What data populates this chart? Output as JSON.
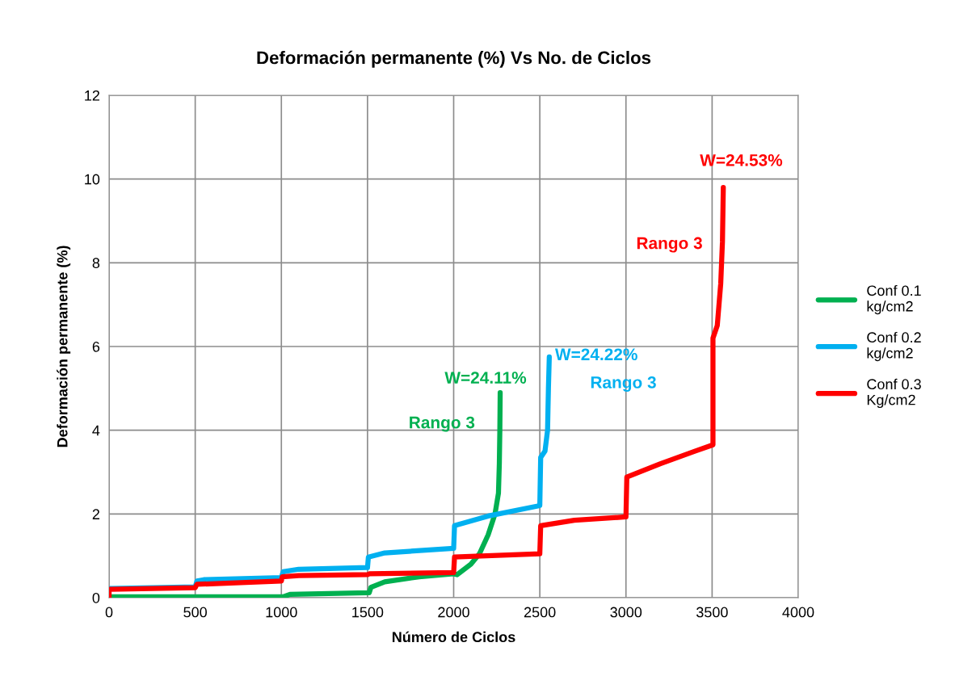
{
  "chart_data": {
    "type": "line",
    "title": "Deformación permanente (%) Vs No. de Ciclos",
    "xlabel": "Número de Ciclos",
    "ylabel": "Deformación permanente (%)",
    "xlim": [
      0,
      4000
    ],
    "xticks": [
      0,
      500,
      1000,
      1500,
      2000,
      2500,
      3000,
      3500,
      4000
    ],
    "ylim": [
      0,
      12
    ],
    "yticks": [
      0,
      2,
      4,
      6,
      8,
      10,
      12
    ],
    "grid": true,
    "legend": "right",
    "marker": "none",
    "line_style": "solid",
    "series": [
      {
        "name": "Conf 0.1\nkg/cm2",
        "color": "#00b050",
        "x": [
          0,
          1000,
          1010,
          1050,
          1500,
          1510,
          1520,
          1600,
          1800,
          2000,
          2020,
          2100,
          2150,
          2200,
          2240,
          2260,
          2265,
          2268,
          2270
        ],
        "values": [
          0.02,
          0.02,
          0.02,
          0.08,
          0.12,
          0.12,
          0.25,
          0.38,
          0.5,
          0.57,
          0.55,
          0.8,
          1.05,
          1.5,
          2.0,
          2.5,
          3.2,
          4.0,
          4.9
        ]
      },
      {
        "name": "Conf 0.2\nkg/cm2",
        "color": "#00b0f0",
        "x": [
          0,
          500,
          510,
          550,
          1000,
          1010,
          1100,
          1500,
          1505,
          1600,
          2000,
          2005,
          2200,
          2500,
          2505,
          2530,
          2545,
          2550,
          2555
        ],
        "values": [
          0.22,
          0.26,
          0.4,
          0.43,
          0.48,
          0.62,
          0.68,
          0.72,
          0.97,
          1.07,
          1.18,
          1.72,
          1.95,
          2.2,
          3.35,
          3.5,
          4.0,
          5.0,
          5.75
        ]
      },
      {
        "name": "Conf 0.3\nKg/cm2",
        "color": "#ff0000",
        "x": [
          0,
          0,
          500,
          510,
          1000,
          1005,
          1100,
          1500,
          1510,
          2000,
          2005,
          2500,
          2505,
          2700,
          3000,
          3005,
          3200,
          3400,
          3505,
          3505,
          3530,
          3550,
          3560,
          3565
        ],
        "values": [
          0.0,
          0.2,
          0.24,
          0.32,
          0.4,
          0.5,
          0.53,
          0.55,
          0.57,
          0.6,
          0.97,
          1.05,
          1.72,
          1.85,
          1.93,
          2.88,
          3.2,
          3.5,
          3.65,
          6.2,
          6.5,
          7.5,
          8.5,
          9.8
        ]
      }
    ],
    "annotations": [
      "W=24.11%",
      "Rango 3",
      "W=24.22%",
      "Rango 3",
      "W=24.53%",
      "Rango 3"
    ]
  }
}
